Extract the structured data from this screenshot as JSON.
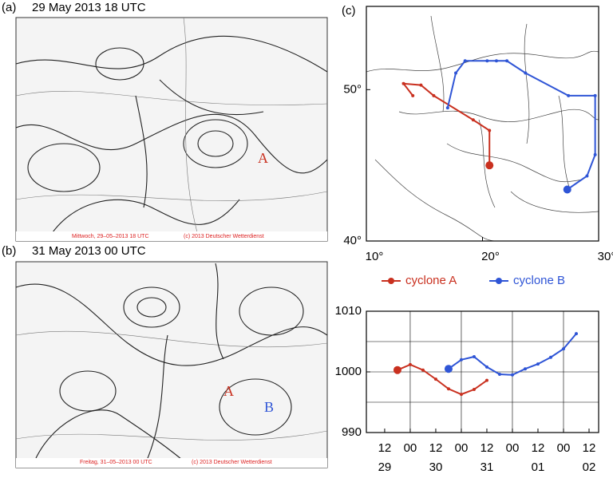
{
  "panels": {
    "a": {
      "label": "(a)",
      "title": "29 May 2013 18 UTC",
      "caption_left": "Mittwoch, 29–05–2013 18 UTC",
      "caption_right": "(c) 2013 Deutscher Wetterdienst",
      "markers": [
        "A"
      ]
    },
    "b": {
      "label": "(b)",
      "title": "31 May 2013 00 UTC",
      "caption_left": "Freitag, 31–05–2013 00 UTC",
      "caption_right": "(c) 2013 Deutscher Wetterdienst",
      "markers": [
        "A",
        "B"
      ]
    }
  },
  "chart_data": [
    {
      "type": "track",
      "label": "(c)",
      "xlim": [
        10,
        30
      ],
      "ylim": [
        40,
        55.5
      ],
      "xticks": [
        {
          "value": 10,
          "label": "10°"
        },
        {
          "value": 20,
          "label": "20°"
        },
        {
          "value": 30,
          "label": "30°"
        }
      ],
      "yticks": [
        {
          "value": 40,
          "label": "40°"
        },
        {
          "value": 50,
          "label": "50°"
        }
      ],
      "series": [
        {
          "name": "cyclone A",
          "color": "#c9301f",
          "x": [
            14.0,
            13.2,
            14.7,
            15.8,
            19.2,
            20.6,
            20.6
          ],
          "values": [
            49.6,
            50.4,
            50.3,
            49.6,
            48.0,
            47.3,
            45.0
          ]
        },
        {
          "name": "cyclone B",
          "color": "#2f55d6",
          "x": [
            17.0,
            17.7,
            18.5,
            20.4,
            21.2,
            22.1,
            23.7,
            27.4,
            29.7,
            29.7,
            29.0,
            27.3
          ],
          "values": [
            48.8,
            51.1,
            51.9,
            51.9,
            51.9,
            51.9,
            51.1,
            49.6,
            49.6,
            45.7,
            44.3,
            43.4
          ]
        }
      ]
    },
    {
      "type": "line",
      "xlim": [
        3.4,
        112.5
      ],
      "ylim": [
        990,
        1010
      ],
      "yticks": [
        990,
        1000,
        1010
      ],
      "ygrid": [
        995,
        1000,
        1005
      ],
      "xgrid": [
        24,
        48,
        72,
        96
      ],
      "xticks": [
        {
          "value": 12,
          "label": "12"
        },
        {
          "value": 24,
          "label": "00"
        },
        {
          "value": 36,
          "label": "12"
        },
        {
          "value": 48,
          "label": "00"
        },
        {
          "value": 60,
          "label": "12"
        },
        {
          "value": 72,
          "label": "00"
        },
        {
          "value": 84,
          "label": "12"
        },
        {
          "value": 96,
          "label": "00"
        },
        {
          "value": 108,
          "label": "12"
        }
      ],
      "xtick_dates": [
        {
          "value": 12,
          "label": "29"
        },
        {
          "value": 36,
          "label": "30"
        },
        {
          "value": 60,
          "label": "31"
        },
        {
          "value": 84,
          "label": "01"
        },
        {
          "value": 108,
          "label": "02"
        }
      ],
      "series": [
        {
          "color": "#c9301f",
          "x": [
            18,
            24,
            30,
            36,
            42,
            48,
            54,
            60
          ],
          "values": [
            1000.3,
            1001.2,
            1000.3,
            998.8,
            997.2,
            996.3,
            997.1,
            998.6
          ]
        },
        {
          "color": "#2f55d6",
          "x": [
            42,
            48,
            54,
            60,
            66,
            72,
            78,
            84,
            90,
            96,
            102
          ],
          "values": [
            1000.5,
            1002.0,
            1002.5,
            1000.8,
            999.6,
            999.5,
            1000.5,
            1001.3,
            1002.4,
            1003.8,
            1006.3
          ]
        }
      ]
    }
  ]
}
